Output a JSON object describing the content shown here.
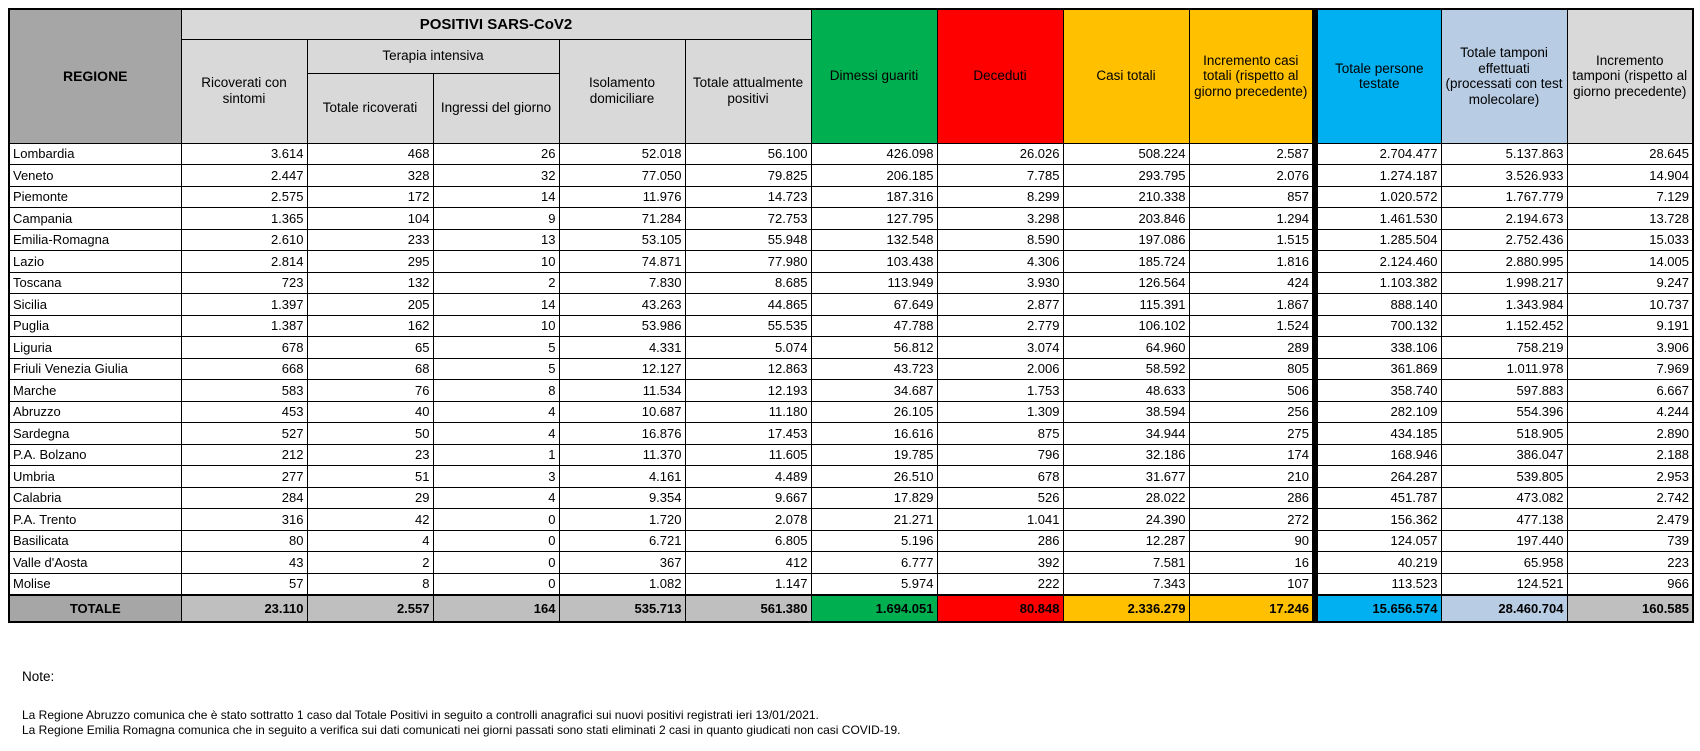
{
  "table": {
    "header": {
      "regione": "REGIONE",
      "positivi_group": "POSITIVI SARS-CoV2",
      "terapia_group": "Terapia intensiva",
      "col_ricoverati_con_sintomi": "Ricoverati con sintomi",
      "col_totale_ricoverati": "Totale ricoverati",
      "col_ingressi_del_giorno": "Ingressi del giorno",
      "col_isolamento_domiciliare": "Isolamento domiciliare",
      "col_totale_attualmente_positivi": "Totale attualmente positivi",
      "col_dimessi_guariti": "Dimessi guariti",
      "col_deceduti": "Deceduti",
      "col_casi_totali": "Casi totali",
      "col_incremento_casi": "Incremento casi totali (rispetto al giorno precedente)",
      "col_totale_persone_testate": "Totale persone testate",
      "col_totale_tamponi": "Totale tamponi effettuati (processati con test molecolare)",
      "col_incremento_tamponi": "Incremento tamponi (rispetto al giorno precedente)"
    },
    "rows": [
      {
        "region": "Lombardia",
        "values": [
          "3.614",
          "468",
          "26",
          "52.018",
          "56.100",
          "426.098",
          "26.026",
          "508.224",
          "2.587",
          "2.704.477",
          "5.137.863",
          "28.645"
        ]
      },
      {
        "region": "Veneto",
        "values": [
          "2.447",
          "328",
          "32",
          "77.050",
          "79.825",
          "206.185",
          "7.785",
          "293.795",
          "2.076",
          "1.274.187",
          "3.526.933",
          "14.904"
        ]
      },
      {
        "region": "Piemonte",
        "values": [
          "2.575",
          "172",
          "14",
          "11.976",
          "14.723",
          "187.316",
          "8.299",
          "210.338",
          "857",
          "1.020.572",
          "1.767.779",
          "7.129"
        ]
      },
      {
        "region": "Campania",
        "values": [
          "1.365",
          "104",
          "9",
          "71.284",
          "72.753",
          "127.795",
          "3.298",
          "203.846",
          "1.294",
          "1.461.530",
          "2.194.673",
          "13.728"
        ]
      },
      {
        "region": "Emilia-Romagna",
        "values": [
          "2.610",
          "233",
          "13",
          "53.105",
          "55.948",
          "132.548",
          "8.590",
          "197.086",
          "1.515",
          "1.285.504",
          "2.752.436",
          "15.033"
        ]
      },
      {
        "region": "Lazio",
        "values": [
          "2.814",
          "295",
          "10",
          "74.871",
          "77.980",
          "103.438",
          "4.306",
          "185.724",
          "1.816",
          "2.124.460",
          "2.880.995",
          "14.005"
        ]
      },
      {
        "region": "Toscana",
        "values": [
          "723",
          "132",
          "2",
          "7.830",
          "8.685",
          "113.949",
          "3.930",
          "126.564",
          "424",
          "1.103.382",
          "1.998.217",
          "9.247"
        ]
      },
      {
        "region": "Sicilia",
        "values": [
          "1.397",
          "205",
          "14",
          "43.263",
          "44.865",
          "67.649",
          "2.877",
          "115.391",
          "1.867",
          "888.140",
          "1.343.984",
          "10.737"
        ]
      },
      {
        "region": "Puglia",
        "values": [
          "1.387",
          "162",
          "10",
          "53.986",
          "55.535",
          "47.788",
          "2.779",
          "106.102",
          "1.524",
          "700.132",
          "1.152.452",
          "9.191"
        ]
      },
      {
        "region": "Liguria",
        "values": [
          "678",
          "65",
          "5",
          "4.331",
          "5.074",
          "56.812",
          "3.074",
          "64.960",
          "289",
          "338.106",
          "758.219",
          "3.906"
        ]
      },
      {
        "region": "Friuli Venezia Giulia",
        "values": [
          "668",
          "68",
          "5",
          "12.127",
          "12.863",
          "43.723",
          "2.006",
          "58.592",
          "805",
          "361.869",
          "1.011.978",
          "7.969"
        ]
      },
      {
        "region": "Marche",
        "values": [
          "583",
          "76",
          "8",
          "11.534",
          "12.193",
          "34.687",
          "1.753",
          "48.633",
          "506",
          "358.740",
          "597.883",
          "6.667"
        ]
      },
      {
        "region": "Abruzzo",
        "values": [
          "453",
          "40",
          "4",
          "10.687",
          "11.180",
          "26.105",
          "1.309",
          "38.594",
          "256",
          "282.109",
          "554.396",
          "4.244"
        ]
      },
      {
        "region": "Sardegna",
        "values": [
          "527",
          "50",
          "4",
          "16.876",
          "17.453",
          "16.616",
          "875",
          "34.944",
          "275",
          "434.185",
          "518.905",
          "2.890"
        ]
      },
      {
        "region": "P.A. Bolzano",
        "values": [
          "212",
          "23",
          "1",
          "11.370",
          "11.605",
          "19.785",
          "796",
          "32.186",
          "174",
          "168.946",
          "386.047",
          "2.188"
        ]
      },
      {
        "region": "Umbria",
        "values": [
          "277",
          "51",
          "3",
          "4.161",
          "4.489",
          "26.510",
          "678",
          "31.677",
          "210",
          "264.287",
          "539.805",
          "2.953"
        ]
      },
      {
        "region": "Calabria",
        "values": [
          "284",
          "29",
          "4",
          "9.354",
          "9.667",
          "17.829",
          "526",
          "28.022",
          "286",
          "451.787",
          "473.082",
          "2.742"
        ]
      },
      {
        "region": "P.A. Trento",
        "values": [
          "316",
          "42",
          "0",
          "1.720",
          "2.078",
          "21.271",
          "1.041",
          "24.390",
          "272",
          "156.362",
          "477.138",
          "2.479"
        ]
      },
      {
        "region": "Basilicata",
        "values": [
          "80",
          "4",
          "0",
          "6.721",
          "6.805",
          "5.196",
          "286",
          "12.287",
          "90",
          "124.057",
          "197.440",
          "739"
        ]
      },
      {
        "region": "Valle d'Aosta",
        "values": [
          "43",
          "2",
          "0",
          "367",
          "412",
          "6.777",
          "392",
          "7.581",
          "16",
          "40.219",
          "65.958",
          "223"
        ]
      },
      {
        "region": "Molise",
        "values": [
          "57",
          "8",
          "0",
          "1.082",
          "1.147",
          "5.974",
          "222",
          "7.343",
          "107",
          "113.523",
          "124.521",
          "966"
        ]
      }
    ],
    "total": {
      "label": "TOTALE",
      "values": [
        "23.110",
        "2.557",
        "164",
        "535.713",
        "561.380",
        "1.694.051",
        "80.848",
        "2.336.279",
        "17.246",
        "15.656.574",
        "28.460.704",
        "160.585"
      ]
    }
  },
  "notes": {
    "title": "Note:",
    "lines": [
      "La Regione Abruzzo comunica che è stato sottratto 1 caso dal Totale Positivi in seguito a controlli anagrafici sui nuovi positivi registrati ieri 13/01/2021.",
      "La Regione Emilia Romagna comunica che in seguito a verifica sui dati comunicati nei giorni passati sono stati eliminati 2 casi in quanto giudicati non casi COVID-19."
    ]
  },
  "colors": {
    "header_dark_gray": "#A6A6A6",
    "header_light_gray": "#D9D9D9",
    "dimessi_green": "#00B050",
    "deceduti_red": "#FF0000",
    "casi_amber": "#FFC000",
    "testate_cyan": "#00B0F0",
    "tamponi_pale_blue": "#B8CCE4",
    "total_row_gray": "#BFBFBF",
    "divider_black": "#000000"
  }
}
